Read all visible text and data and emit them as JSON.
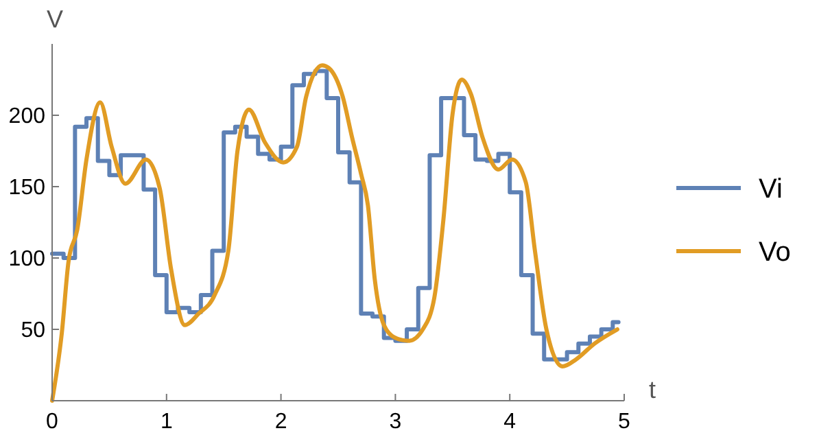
{
  "chart_data": {
    "type": "line",
    "xlabel": "t",
    "ylabel": "V",
    "xlim": [
      0,
      5
    ],
    "ylim": [
      0,
      250
    ],
    "xticks": [
      0,
      1,
      2,
      3,
      4,
      5
    ],
    "yticks": [
      50,
      100,
      150,
      200
    ],
    "legend": "right",
    "grid": false,
    "series": [
      {
        "name": "Vi",
        "type": "step",
        "color": "#5e81b5",
        "x": [
          0,
          0.1,
          0.2,
          0.3,
          0.4,
          0.5,
          0.6,
          0.7,
          0.8,
          0.9,
          1.0,
          1.1,
          1.2,
          1.3,
          1.4,
          1.5,
          1.6,
          1.7,
          1.8,
          1.9,
          2.0,
          2.1,
          2.2,
          2.3,
          2.4,
          2.5,
          2.6,
          2.7,
          2.8,
          2.9,
          3.0,
          3.1,
          3.2,
          3.3,
          3.4,
          3.5,
          3.6,
          3.7,
          3.8,
          3.9,
          4.0,
          4.1,
          4.2,
          4.3,
          4.4,
          4.5,
          4.6,
          4.7,
          4.8,
          4.9,
          4.95
        ],
        "values": [
          103,
          100,
          192,
          198,
          168,
          158,
          172,
          172,
          148,
          88,
          62,
          65,
          62,
          74,
          105,
          188,
          192,
          185,
          173,
          169,
          178,
          221,
          229,
          231,
          212,
          174,
          153,
          61,
          59,
          44,
          42,
          50,
          79,
          172,
          212,
          212,
          186,
          169,
          168,
          173,
          146,
          88,
          47,
          29,
          29,
          34,
          40,
          45,
          50,
          55,
          55
        ]
      },
      {
        "name": "Vo",
        "color": "#e19c24",
        "x": [
          0,
          0.084,
          0.144,
          0.22,
          0.3,
          0.42,
          0.52,
          0.64,
          0.82,
          0.94,
          1.04,
          1.16,
          1.28,
          1.42,
          1.54,
          1.62,
          1.72,
          1.86,
          2.02,
          2.14,
          2.22,
          2.36,
          2.42,
          2.54,
          2.62,
          2.7,
          2.76,
          2.82,
          2.9,
          3.0,
          3.12,
          3.24,
          3.34,
          3.42,
          3.5,
          3.58,
          3.66,
          3.76,
          3.9,
          4.02,
          4.14,
          4.22,
          4.32,
          4.46,
          4.58,
          4.74,
          4.94
        ],
        "values": [
          0,
          47,
          98,
          120,
          169,
          209,
          178,
          152,
          169,
          149,
          92,
          53,
          61,
          74,
          105,
          175,
          204,
          181,
          167,
          178,
          213,
          235,
          233,
          213,
          185,
          159,
          137,
          85,
          53,
          44,
          42,
          50,
          72,
          127,
          201,
          225,
          215,
          185,
          162,
          169,
          153,
          105,
          50,
          24,
          29,
          40,
          50
        ]
      }
    ]
  }
}
